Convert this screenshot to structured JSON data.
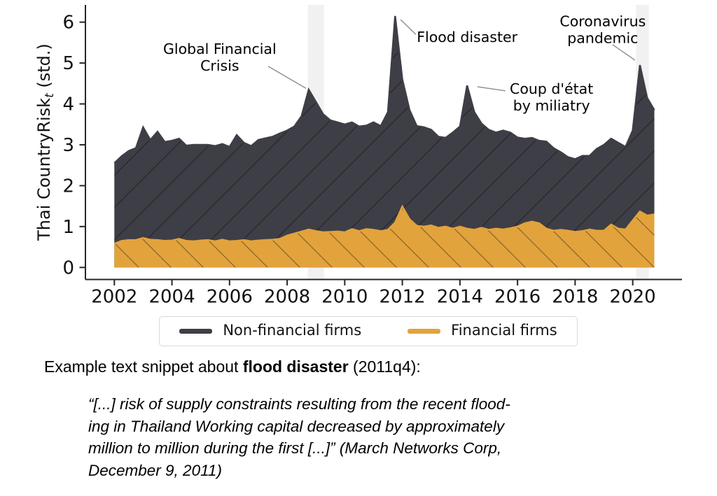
{
  "chart_data": {
    "type": "area",
    "title": "",
    "xlabel": "",
    "ylabel_parts": {
      "main": "Thai CountryRisk",
      "subscript": "t",
      "suffix": " (std.)"
    },
    "x_start": 2002.0,
    "x_step": 0.25,
    "x_ticks": [
      2002,
      2004,
      2006,
      2008,
      2010,
      2012,
      2014,
      2016,
      2018,
      2020
    ],
    "y_ticks": [
      0,
      1,
      2,
      3,
      4,
      5,
      6
    ],
    "xlim": [
      2001.0,
      2021.7
    ],
    "ylim": [
      -0.29,
      6.4
    ],
    "grid": false,
    "band_color": "#f1f1f2",
    "shaded_bands": [
      {
        "from": 2008.72,
        "to": 2009.28
      },
      {
        "from": 2020.12,
        "to": 2020.56
      }
    ],
    "series": [
      {
        "name": "Non-financial firms",
        "color": "#3e3e46",
        "hatch": "/",
        "values": [
          2.55,
          2.72,
          2.85,
          2.92,
          3.43,
          3.12,
          3.32,
          3.07,
          3.1,
          3.15,
          2.98,
          3.0,
          3.0,
          3.0,
          2.97,
          3.02,
          2.95,
          3.24,
          3.05,
          2.97,
          3.12,
          3.16,
          3.2,
          3.28,
          3.35,
          3.45,
          3.7,
          4.35,
          4.05,
          3.75,
          3.6,
          3.55,
          3.5,
          3.55,
          3.45,
          3.47,
          3.55,
          3.46,
          3.8,
          6.15,
          4.6,
          3.85,
          3.46,
          3.43,
          3.37,
          3.2,
          3.17,
          3.3,
          3.45,
          4.45,
          3.8,
          3.52,
          3.37,
          3.3,
          3.35,
          3.3,
          3.18,
          3.15,
          3.17,
          3.1,
          3.08,
          2.92,
          2.82,
          2.7,
          2.65,
          2.73,
          2.73,
          2.9,
          3.0,
          3.15,
          3.05,
          2.95,
          3.35,
          4.95,
          4.15,
          3.85
        ]
      },
      {
        "name": "Financial firms",
        "color": "#e2a33d",
        "hatch": "\\",
        "values": [
          0.58,
          0.65,
          0.67,
          0.67,
          0.72,
          0.68,
          0.67,
          0.65,
          0.66,
          0.7,
          0.65,
          0.64,
          0.66,
          0.67,
          0.64,
          0.68,
          0.64,
          0.65,
          0.67,
          0.64,
          0.66,
          0.67,
          0.68,
          0.7,
          0.78,
          0.83,
          0.88,
          0.93,
          0.89,
          0.86,
          0.87,
          0.88,
          0.86,
          0.94,
          0.89,
          0.94,
          0.92,
          0.89,
          0.92,
          1.1,
          1.49,
          1.18,
          1.02,
          1.0,
          1.03,
          0.97,
          1.0,
          0.95,
          1.0,
          0.95,
          0.92,
          0.97,
          0.92,
          0.95,
          0.93,
          0.96,
          1.0,
          1.08,
          1.12,
          1.08,
          0.95,
          0.9,
          0.92,
          0.9,
          0.87,
          0.89,
          0.93,
          0.9,
          0.9,
          1.05,
          0.95,
          0.93,
          1.15,
          1.37,
          1.27,
          1.3
        ]
      }
    ],
    "annotations": [
      {
        "id": "gfc",
        "lines": [
          "Global Financial",
          "Crisis"
        ],
        "text_at": {
          "x": 2005.66,
          "y": 5.12
        },
        "leader": {
          "x1": 2007.34,
          "y1": 4.92,
          "x2": 2008.66,
          "y2": 4.38
        }
      },
      {
        "id": "flood",
        "lines": [
          "Flood disaster"
        ],
        "text_at": {
          "x": 2014.25,
          "y": 5.62
        },
        "leader": {
          "x1": 2011.94,
          "y1": 6.06,
          "x2": 2012.47,
          "y2": 5.7
        }
      },
      {
        "id": "coup",
        "lines": [
          "Coup d'état",
          "by miliatry"
        ],
        "text_at": {
          "x": 2017.18,
          "y": 4.15
        },
        "leader": {
          "x1": 2014.61,
          "y1": 4.42,
          "x2": 2015.58,
          "y2": 4.32
        }
      },
      {
        "id": "covid",
        "lines": [
          "Coronavirus",
          "pandemic"
        ],
        "text_at": {
          "x": 2018.96,
          "y": 5.8
        },
        "leader": {
          "x1": 2019.3,
          "y1": 5.45,
          "x2": 2020.08,
          "y2": 5.07
        }
      }
    ]
  },
  "legend": {
    "items": [
      {
        "label": "Non-financial firms",
        "color": "#3e3e46"
      },
      {
        "label": "Financial firms",
        "color": "#e2a33d"
      }
    ]
  },
  "caption": {
    "intro_prefix": "Example text snippet about ",
    "intro_bold": "flood disaster",
    "intro_suffix": " (2011q4):",
    "quote_lines": [
      "“[...] risk of supply constraints resulting from the recent flood-",
      "ing in Thailand Working capital decreased by approximately",
      "million to million during the first [...]” (March Networks Corp,",
      "December 9, 2011)"
    ]
  }
}
